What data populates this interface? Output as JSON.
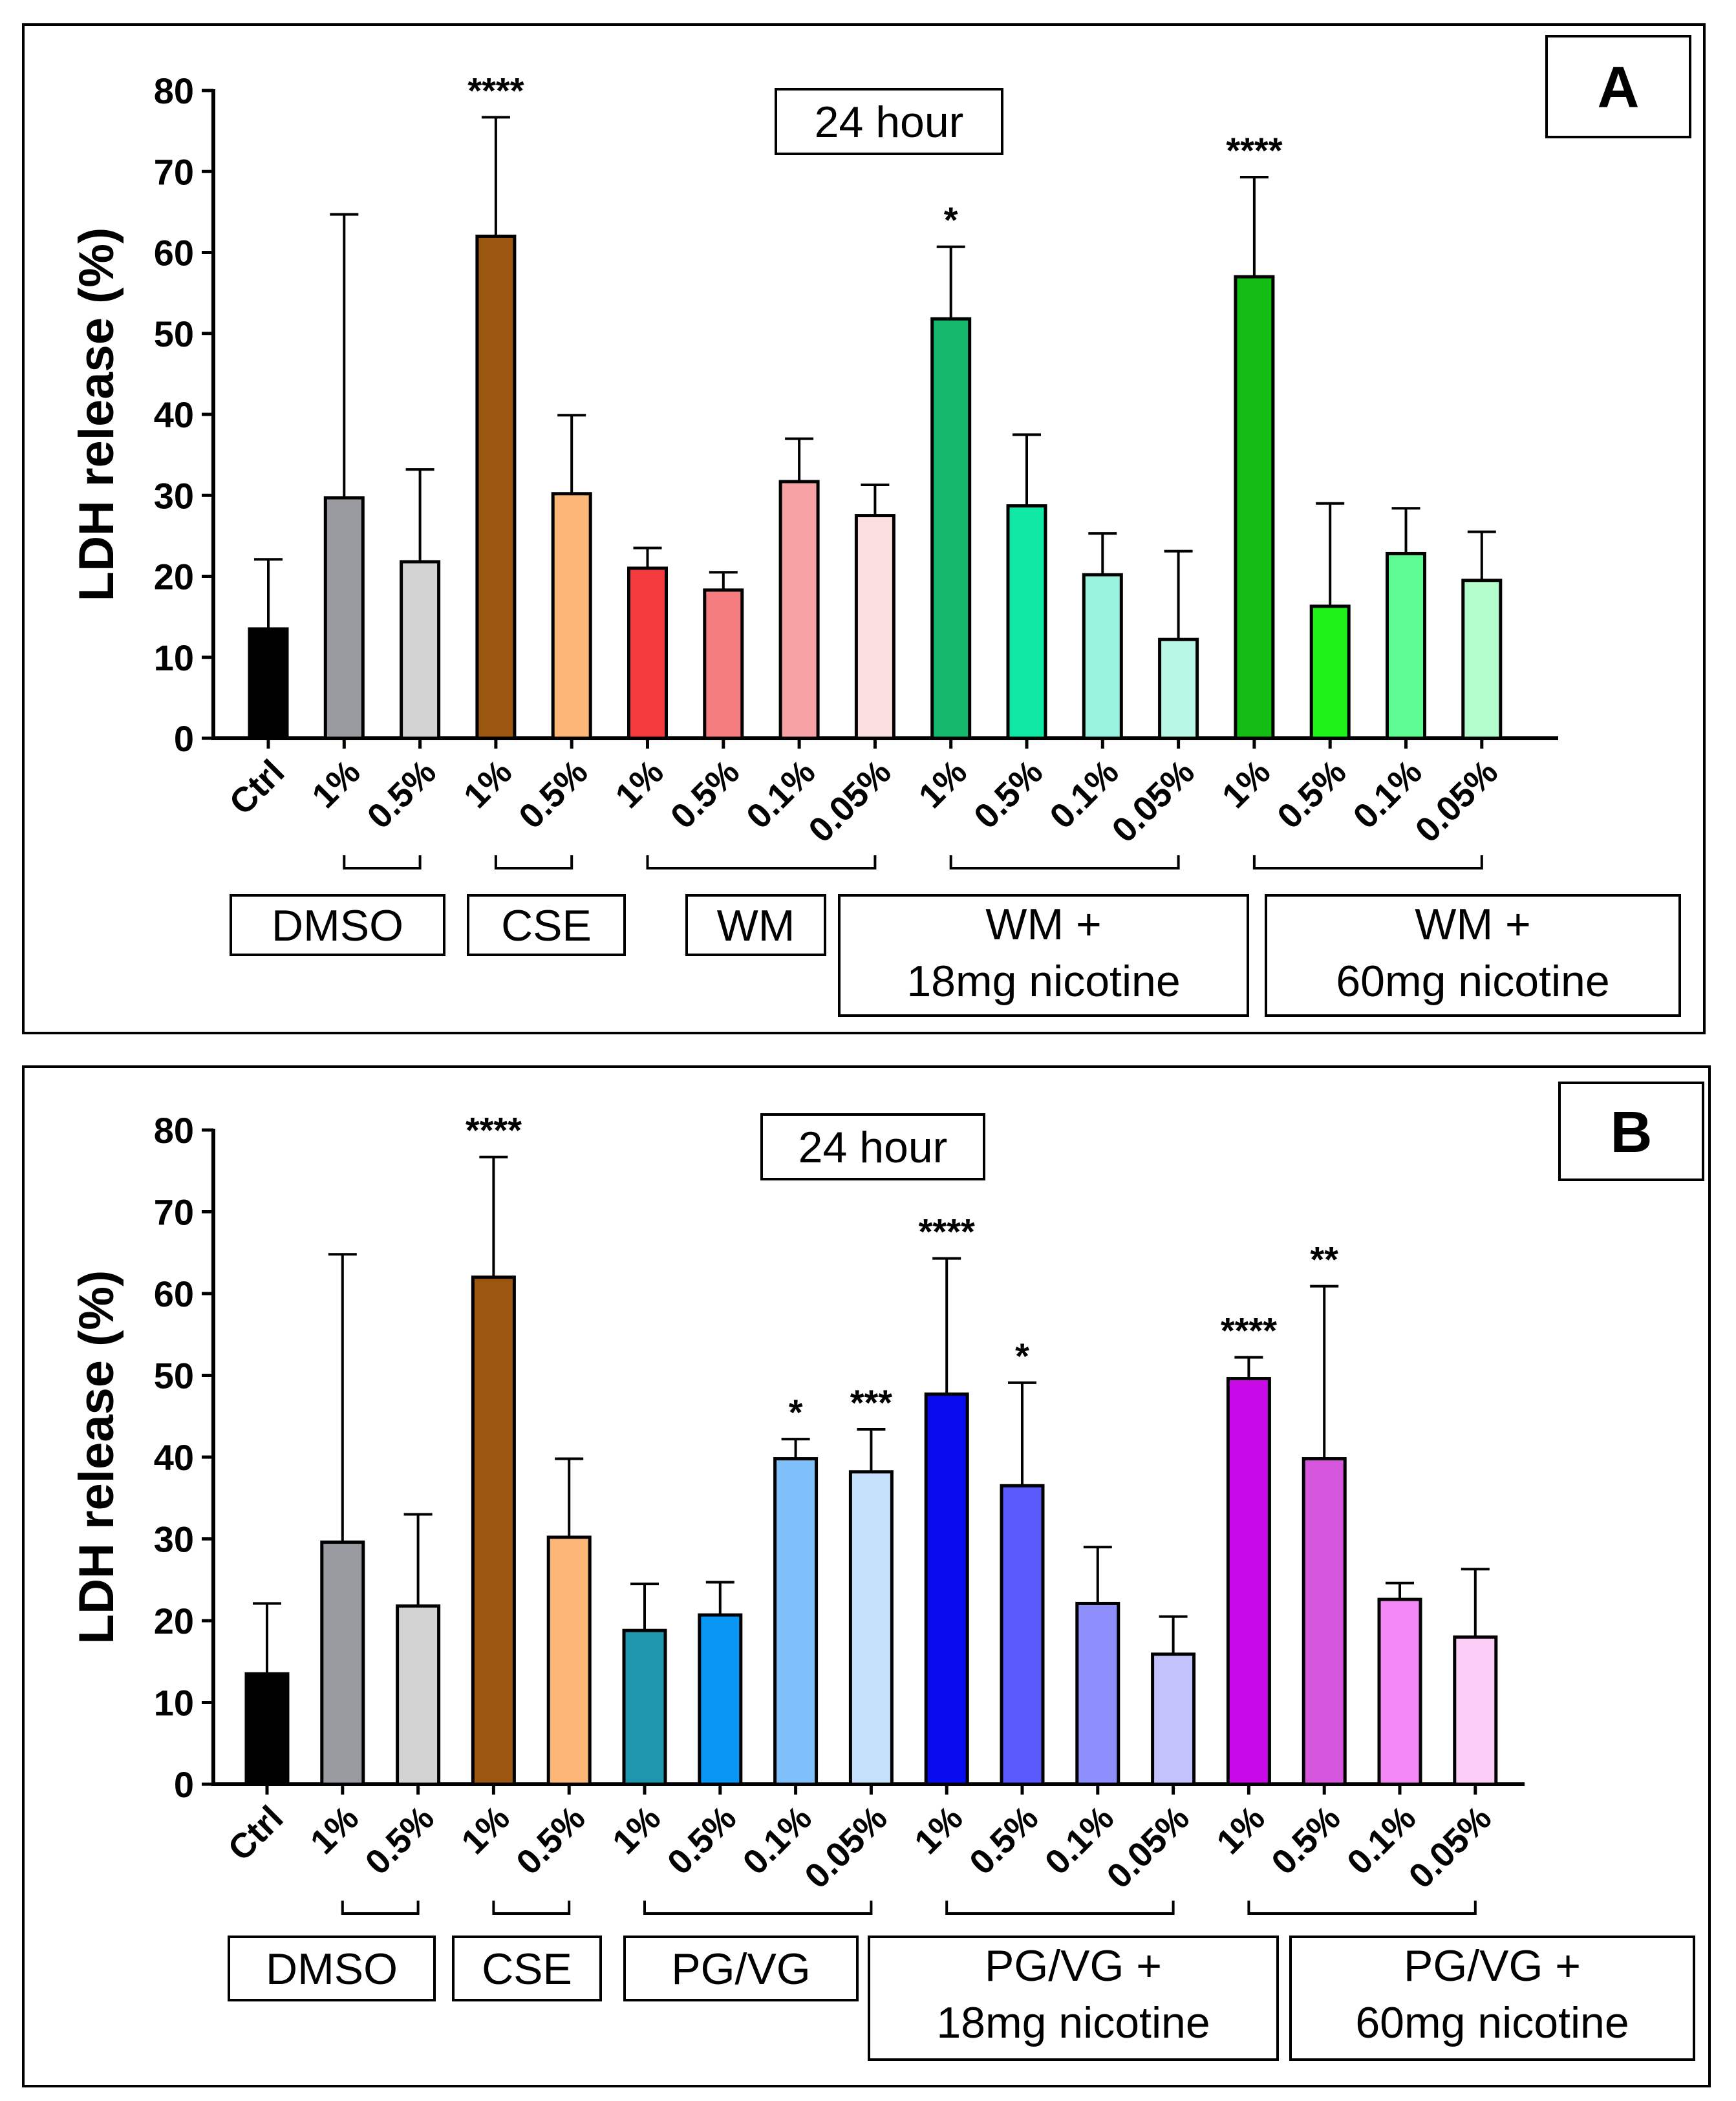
{
  "chart_data": [
    {
      "type": "bar",
      "panel": "A",
      "title": "24 hour",
      "ylabel": "LDH release (%)",
      "ylim": [
        0,
        80
      ],
      "yticks": [
        0,
        10,
        20,
        30,
        40,
        50,
        60,
        70,
        80
      ],
      "categories": [
        "Ctrl",
        "1%",
        "0.5%",
        "1%",
        "0.5%",
        "1%",
        "0.5%",
        "0.1%",
        "0.05%",
        "1%",
        "0.5%",
        "0.1%",
        "0.05%",
        "1%",
        "0.5%",
        "0.1%",
        "0.05%"
      ],
      "values": [
        13.5,
        29.7,
        21.8,
        62,
        30.2,
        21,
        18.3,
        31.7,
        27.5,
        51.8,
        28.7,
        20.2,
        12.2,
        57,
        16.3,
        22.8,
        19.5
      ],
      "errors": [
        8.6,
        35,
        11.4,
        14.7,
        9.7,
        2.5,
        2.2,
        5.3,
        3.8,
        8.9,
        8.8,
        5.1,
        10.9,
        12.3,
        12.7,
        5.6,
        6
      ],
      "colors": [
        "#000000",
        "#9a9ba1",
        "#d3d3d3",
        "#9b5610",
        "#fcb778",
        "#f53a3e",
        "#f57d7f",
        "#f7a2a4",
        "#fbe0e0",
        "#16b86e",
        "#11e8a5",
        "#99f2de",
        "#b8f6e6",
        "#13bd13",
        "#1df219",
        "#5dfc92",
        "#b3fccb"
      ],
      "significance": [
        {
          "bar": 3,
          "label": "****"
        },
        {
          "bar": 9,
          "label": "*"
        },
        {
          "bar": 13,
          "label": "****"
        }
      ],
      "groups": [
        {
          "lines": [
            "DMSO"
          ],
          "from": 1,
          "to": 2
        },
        {
          "lines": [
            "CSE"
          ],
          "from": 3,
          "to": 4
        },
        {
          "lines": [
            "WM"
          ],
          "from": 5,
          "to": 8
        },
        {
          "lines": [
            "WM +",
            "18mg nicotine"
          ],
          "from": 9,
          "to": 12
        },
        {
          "lines": [
            "WM +",
            "60mg nicotine"
          ],
          "from": 13,
          "to": 16
        }
      ]
    },
    {
      "type": "bar",
      "panel": "B",
      "title": "24 hour",
      "ylabel": "LDH release (%)",
      "ylim": [
        0,
        80
      ],
      "yticks": [
        0,
        10,
        20,
        30,
        40,
        50,
        60,
        70,
        80
      ],
      "categories": [
        "Ctrl",
        "1%",
        "0.5%",
        "1%",
        "0.5%",
        "1%",
        "0.5%",
        "0.1%",
        "0.05%",
        "1%",
        "0.5%",
        "0.1%",
        "0.05%",
        "1%",
        "0.5%",
        "0.1%",
        "0.05%"
      ],
      "values": [
        13.5,
        29.6,
        21.8,
        62,
        30.2,
        18.8,
        20.7,
        39.8,
        38.2,
        47.7,
        36.5,
        22.1,
        15.9,
        49.6,
        39.8,
        22.6,
        18
      ],
      "errors": [
        8.6,
        35.2,
        11.2,
        14.7,
        9.6,
        5.7,
        4,
        2.4,
        5.2,
        16.6,
        12.6,
        6.9,
        4.6,
        2.6,
        21.1,
        2,
        8.3
      ],
      "colors": [
        "#000000",
        "#9a9ba1",
        "#d3d3d3",
        "#9b5610",
        "#fcb778",
        "#1f96ae",
        "#0996f5",
        "#7fc0fb",
        "#c4e0fb",
        "#0b0bef",
        "#5959fc",
        "#8e8efc",
        "#c2c2fc",
        "#c90ae8",
        "#d657de",
        "#f387f5",
        "#fccdf7"
      ],
      "significance": [
        {
          "bar": 3,
          "label": "****"
        },
        {
          "bar": 7,
          "label": "*"
        },
        {
          "bar": 8,
          "label": "***"
        },
        {
          "bar": 9,
          "label": "****"
        },
        {
          "bar": 10,
          "label": "*"
        },
        {
          "bar": 13,
          "label": "****"
        },
        {
          "bar": 14,
          "label": "**"
        }
      ],
      "groups": [
        {
          "lines": [
            "DMSO"
          ],
          "from": 1,
          "to": 2
        },
        {
          "lines": [
            "CSE"
          ],
          "from": 3,
          "to": 4
        },
        {
          "lines": [
            "PG/VG"
          ],
          "from": 5,
          "to": 8
        },
        {
          "lines": [
            "PG/VG +",
            "18mg nicotine"
          ],
          "from": 9,
          "to": 12
        },
        {
          "lines": [
            "PG/VG +",
            "60mg nicotine"
          ],
          "from": 13,
          "to": 16
        }
      ]
    }
  ]
}
